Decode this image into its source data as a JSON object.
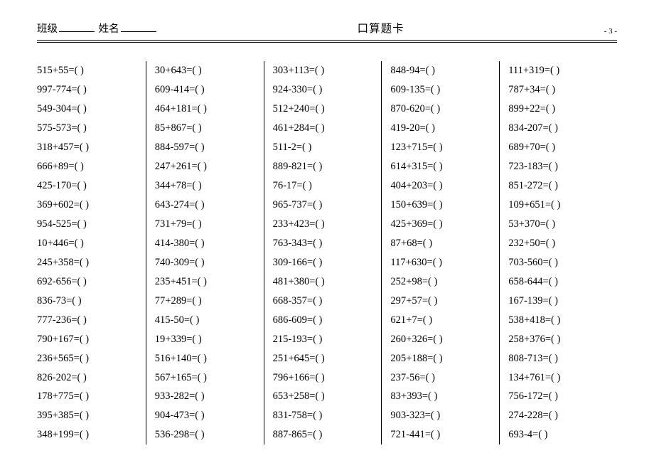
{
  "header": {
    "class_label": "班级",
    "name_label": "姓名",
    "title": "口算题卡",
    "page_indicator": "- 3 -"
  },
  "colors": {
    "text": "#000000",
    "background": "#ffffff",
    "rule": "#000000"
  },
  "typography": {
    "body_font": "SimSun",
    "body_size_pt": 11,
    "title_size_pt": 12,
    "line_height": 1.86
  },
  "worksheet": {
    "type": "table",
    "columns_count": 5,
    "rows_per_column": 20,
    "answer_placeholder": "(    )",
    "problems": [
      [
        "515+55",
        "997-774",
        "549-304",
        "575-573",
        "318+457",
        "666+89",
        "425-170",
        "369+602",
        "954-525",
        "10+446",
        "245+358",
        "692-656",
        "836-73",
        "777-236",
        "790+167",
        "236+565",
        "826-202",
        "178+775",
        "395+385",
        "348+199"
      ],
      [
        "30+643",
        "609-414",
        "464+181",
        "85+867",
        "884-597",
        "247+261",
        "344+78",
        "643-274",
        "731+79",
        "414-380",
        "740-309",
        "235+451",
        "77+289",
        "415-50",
        "19+339",
        "516+140",
        "567+165",
        "933-282",
        "904-473",
        "536-298"
      ],
      [
        "303+113",
        "924-330",
        "512+240",
        "461+284",
        "511-2",
        "889-821",
        "76-17",
        "965-737",
        "233+423",
        "763-343",
        "309-166",
        "481+380",
        "668-357",
        "686-609",
        "215-193",
        "251+645",
        "796+166",
        "653+258",
        "831-758",
        "887-865"
      ],
      [
        "848-94",
        "609-135",
        "870-620",
        "419-20",
        "123+715",
        "614+315",
        "404+203",
        "150+639",
        "425+369",
        "87+68",
        "117+630",
        "252+98",
        "297+57",
        "621+7",
        "260+326",
        "205+188",
        "237-56",
        "83+393",
        "903-323",
        "721-441"
      ],
      [
        "111+319",
        "787+34",
        "899+22",
        "834-207",
        "689+70",
        "723-183",
        "851-272",
        "109+651",
        "53+370",
        "232+50",
        "703-560",
        "658-644",
        "167-139",
        "538+418",
        "258+376",
        "808-713",
        "134+761",
        "756-172",
        "274-228",
        "693-4"
      ]
    ]
  }
}
